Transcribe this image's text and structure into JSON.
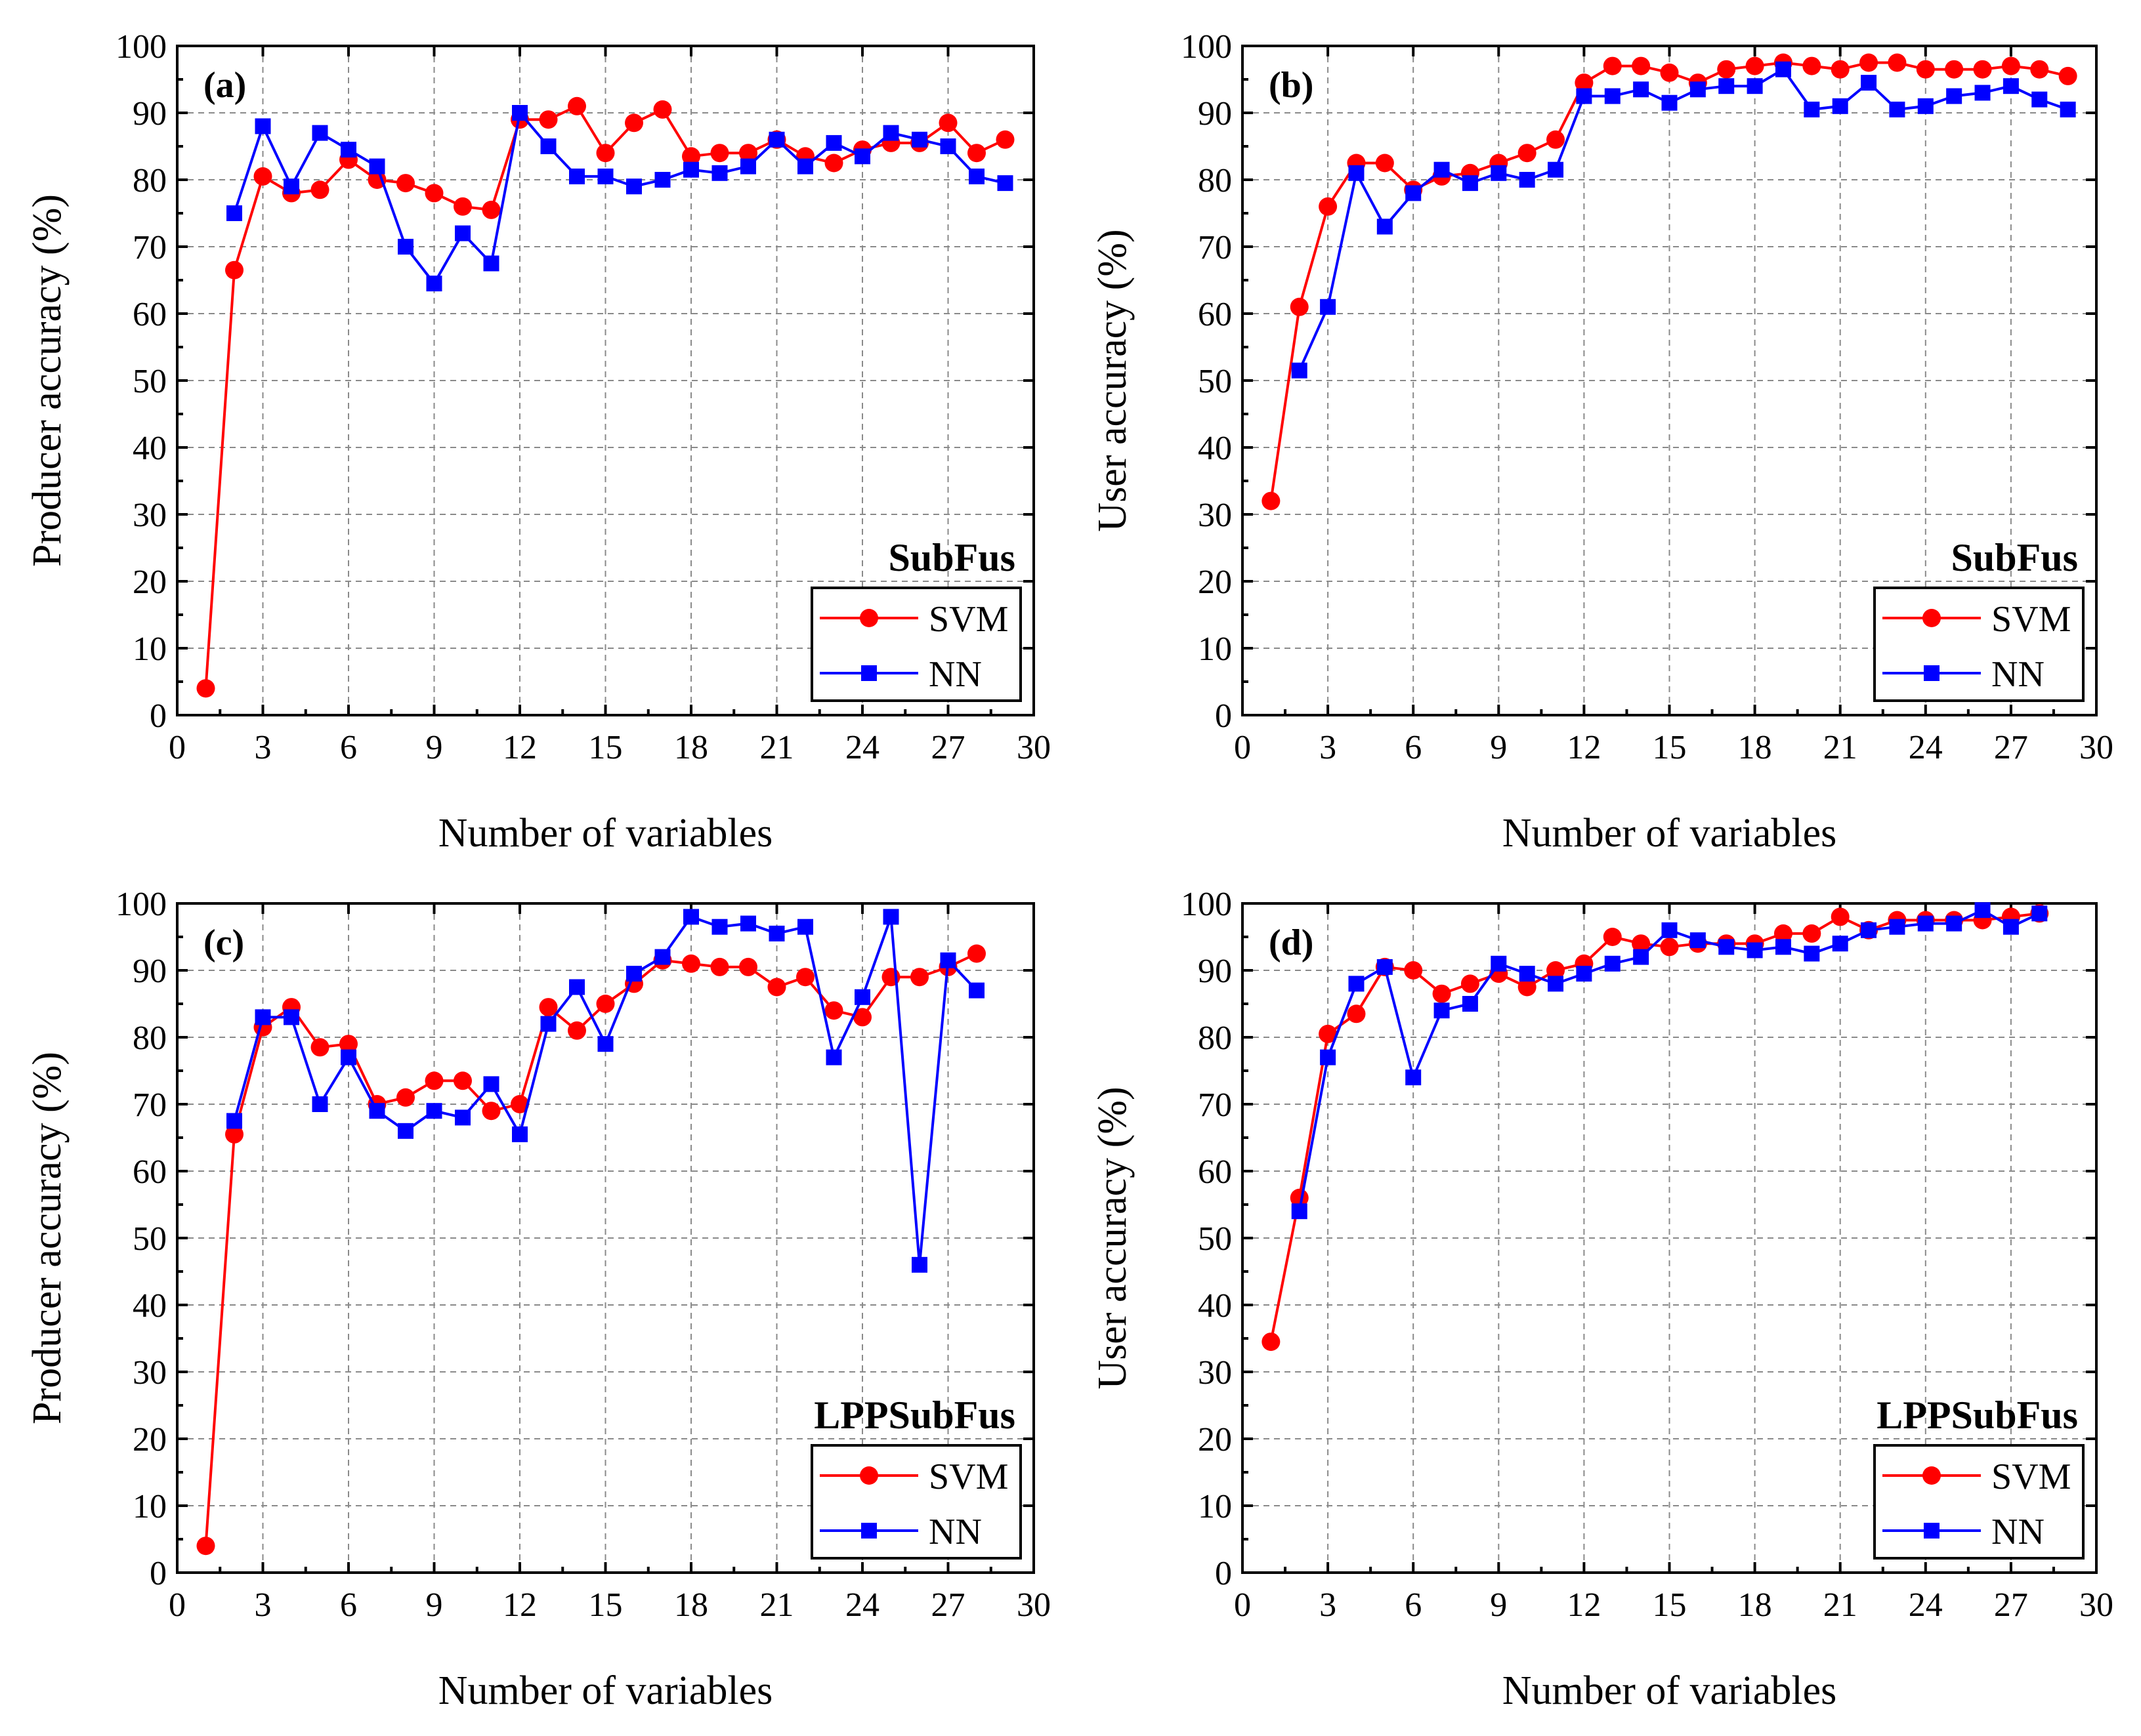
{
  "colors": {
    "svm": "#ff0000",
    "nn": "#0000ff"
  },
  "chart_data": [
    {
      "type": "line",
      "panel_label": "(a)",
      "method_label": "SubFus",
      "xlabel": "Number of variables",
      "ylabel": "Producer accuracy (%)",
      "xlim": [
        0,
        30
      ],
      "ylim": [
        0,
        100
      ],
      "xticks": [
        "0",
        "3",
        "6",
        "9",
        "12",
        "15",
        "18",
        "21",
        "24",
        "27",
        "30"
      ],
      "yticks": [
        "0",
        "10",
        "20",
        "30",
        "40",
        "50",
        "60",
        "70",
        "80",
        "90",
        "100"
      ],
      "grid": true,
      "legend_position": "bottom-right",
      "series": [
        {
          "name": "SVM",
          "marker": "circle",
          "x": [
            1,
            2,
            3,
            4,
            5,
            6,
            7,
            8,
            9,
            10,
            11,
            12,
            13,
            14,
            15,
            16,
            17,
            18,
            19,
            20,
            21,
            22,
            23,
            24,
            25,
            26,
            27,
            28,
            29
          ],
          "y": [
            4,
            66.5,
            80.5,
            78,
            78.5,
            83,
            80,
            79.5,
            78,
            76,
            75.5,
            89,
            89,
            91,
            84,
            88.5,
            90.5,
            83.5,
            84,
            84,
            86,
            83.5,
            82.5,
            84.5,
            85.5,
            85.5,
            88.5,
            84,
            86
          ]
        },
        {
          "name": "NN",
          "marker": "square",
          "x": [
            2,
            3,
            4,
            5,
            6,
            7,
            8,
            9,
            10,
            11,
            12,
            13,
            14,
            15,
            16,
            17,
            18,
            19,
            20,
            21,
            22,
            23,
            24,
            25,
            26,
            27,
            28,
            29
          ],
          "y": [
            75,
            88,
            79,
            87,
            84.5,
            82,
            70,
            64.5,
            72,
            67.5,
            90,
            85,
            80.5,
            80.5,
            79,
            80,
            81.5,
            81,
            82,
            86,
            82,
            85.5,
            83.5,
            87,
            86,
            85,
            80.5,
            79.5
          ]
        }
      ]
    },
    {
      "type": "line",
      "panel_label": "(b)",
      "method_label": "SubFus",
      "xlabel": "Number of variables",
      "ylabel": "User accuracy (%)",
      "xlim": [
        0,
        30
      ],
      "ylim": [
        0,
        100
      ],
      "xticks": [
        "0",
        "3",
        "6",
        "9",
        "12",
        "15",
        "18",
        "21",
        "24",
        "27",
        "30"
      ],
      "yticks": [
        "0",
        "10",
        "20",
        "30",
        "40",
        "50",
        "60",
        "70",
        "80",
        "90",
        "100"
      ],
      "grid": true,
      "legend_position": "bottom-right",
      "series": [
        {
          "name": "SVM",
          "marker": "circle",
          "x": [
            1,
            2,
            3,
            4,
            5,
            6,
            7,
            8,
            9,
            10,
            11,
            12,
            13,
            14,
            15,
            16,
            17,
            18,
            19,
            20,
            21,
            22,
            23,
            24,
            25,
            26,
            27,
            28,
            29
          ],
          "y": [
            32,
            61,
            76,
            82.5,
            82.5,
            78.5,
            80.5,
            81,
            82.5,
            84,
            86,
            94.5,
            97,
            97,
            96,
            94.5,
            96.5,
            97,
            97.5,
            97,
            96.5,
            97.5,
            97.5,
            96.5,
            96.5,
            96.5,
            97,
            96.5,
            95.5
          ]
        },
        {
          "name": "NN",
          "marker": "square",
          "x": [
            2,
            3,
            4,
            5,
            6,
            7,
            8,
            9,
            10,
            11,
            12,
            13,
            14,
            15,
            16,
            17,
            18,
            19,
            20,
            21,
            22,
            23,
            24,
            25,
            26,
            27,
            28,
            29
          ],
          "y": [
            51.5,
            61,
            81,
            73,
            78,
            81.5,
            79.5,
            81,
            80,
            81.5,
            92.5,
            92.5,
            93.5,
            91.5,
            93.5,
            94,
            94,
            96.5,
            90.5,
            91,
            94.5,
            90.5,
            91,
            92.5,
            93,
            94,
            92,
            90.5
          ]
        }
      ]
    },
    {
      "type": "line",
      "panel_label": "(c)",
      "method_label": "LPPSubFus",
      "xlabel": "Number of variables",
      "ylabel": "Producer accuracy (%)",
      "xlim": [
        0,
        30
      ],
      "ylim": [
        0,
        100
      ],
      "xticks": [
        "0",
        "3",
        "6",
        "9",
        "12",
        "15",
        "18",
        "21",
        "24",
        "27",
        "30"
      ],
      "yticks": [
        "0",
        "10",
        "20",
        "30",
        "40",
        "50",
        "60",
        "70",
        "80",
        "90",
        "100"
      ],
      "grid": true,
      "legend_position": "bottom-right",
      "series": [
        {
          "name": "SVM",
          "marker": "circle",
          "x": [
            1,
            2,
            3,
            4,
            5,
            6,
            7,
            8,
            9,
            10,
            11,
            12,
            13,
            14,
            15,
            16,
            17,
            18,
            19,
            20,
            21,
            22,
            23,
            24,
            25,
            26,
            27,
            28
          ],
          "y": [
            4,
            65.5,
            81.5,
            84.5,
            78.5,
            79,
            70,
            71,
            73.5,
            73.5,
            69,
            70,
            84.5,
            81,
            85,
            88,
            91.5,
            91,
            90.5,
            90.5,
            87.5,
            89,
            84,
            83,
            89,
            89,
            90.5,
            92.5
          ]
        },
        {
          "name": "NN",
          "marker": "square",
          "x": [
            2,
            3,
            4,
            5,
            6,
            7,
            8,
            9,
            10,
            11,
            12,
            13,
            14,
            15,
            16,
            17,
            18,
            19,
            20,
            21,
            22,
            23,
            24,
            25,
            26,
            27,
            28
          ],
          "y": [
            67.5,
            83,
            83,
            70,
            77,
            69,
            66,
            69,
            68,
            73,
            65.5,
            82,
            87.5,
            79,
            89.5,
            92,
            98,
            96.5,
            97,
            95.5,
            96.5,
            77,
            86,
            98,
            46,
            91.5,
            87
          ]
        }
      ]
    },
    {
      "type": "line",
      "panel_label": "(d)",
      "method_label": "LPPSubFus",
      "xlabel": "Number of variables",
      "ylabel": "User accuracy (%)",
      "xlim": [
        0,
        30
      ],
      "ylim": [
        0,
        100
      ],
      "xticks": [
        "0",
        "3",
        "6",
        "9",
        "12",
        "15",
        "18",
        "21",
        "24",
        "27",
        "30"
      ],
      "yticks": [
        "0",
        "10",
        "20",
        "30",
        "40",
        "50",
        "60",
        "70",
        "80",
        "90",
        "100"
      ],
      "grid": true,
      "legend_position": "bottom-right",
      "series": [
        {
          "name": "SVM",
          "marker": "circle",
          "x": [
            1,
            2,
            3,
            4,
            5,
            6,
            7,
            8,
            9,
            10,
            11,
            12,
            13,
            14,
            15,
            16,
            17,
            18,
            19,
            20,
            21,
            22,
            23,
            24,
            25,
            26,
            27,
            28
          ],
          "y": [
            34.5,
            56,
            80.5,
            83.5,
            90.5,
            90,
            86.5,
            88,
            89.5,
            87.5,
            90,
            91,
            95,
            94,
            93.5,
            94,
            94,
            94,
            95.5,
            95.5,
            98,
            96,
            97.5,
            97.5,
            97.5,
            97.5,
            98,
            98.5
          ]
        },
        {
          "name": "NN",
          "marker": "square",
          "x": [
            2,
            3,
            4,
            5,
            6,
            7,
            8,
            9,
            10,
            11,
            12,
            13,
            14,
            15,
            16,
            17,
            18,
            19,
            20,
            21,
            22,
            23,
            24,
            25,
            26,
            27,
            28
          ],
          "y": [
            54,
            77,
            88,
            90.5,
            74,
            84,
            85,
            91,
            89.5,
            88,
            89.5,
            91,
            92,
            96,
            94.5,
            93.5,
            93,
            93.5,
            92.5,
            94,
            96,
            96.5,
            97,
            97,
            99,
            96.5,
            98.5
          ]
        }
      ]
    }
  ]
}
